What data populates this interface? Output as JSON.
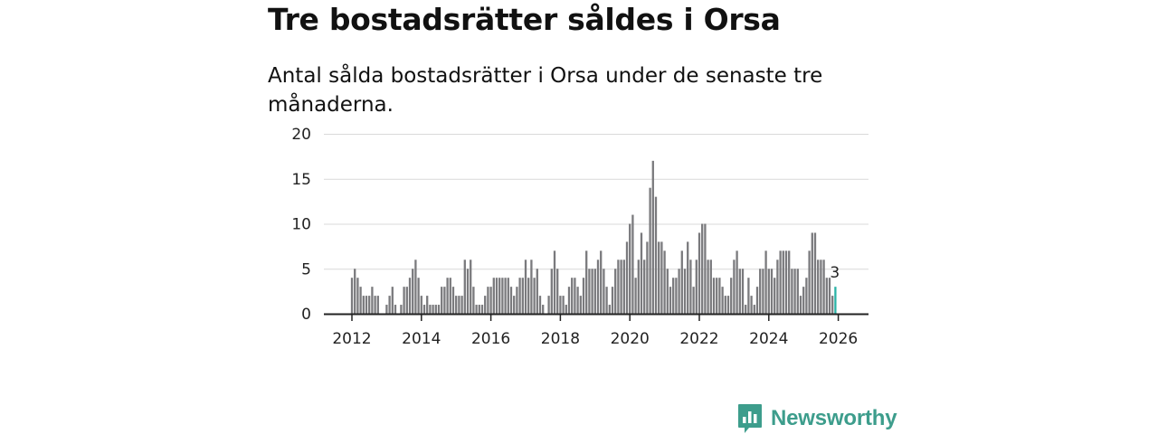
{
  "title": "Tre bostadsrätter såldes i Orsa",
  "subtitle": "Antal sålda bostadsrätter i Orsa under de senaste tre månaderna.",
  "brand": {
    "name": "Newsworthy",
    "icon": "newsworthy-logo-icon",
    "color": "#3d9d8c"
  },
  "colors": {
    "bar": "#7a7a7d",
    "highlight": "#2ab3a6",
    "grid": "#d9d9d9",
    "axis": "#222222"
  },
  "chart_data": {
    "type": "bar",
    "title": "Tre bostadsrätter såldes i Orsa",
    "xlabel": "",
    "ylabel": "",
    "ylim": [
      0,
      20
    ],
    "yticks": [
      0,
      5,
      10,
      15,
      20
    ],
    "xticks": [
      "2012",
      "2014",
      "2016",
      "2018",
      "2020",
      "2022",
      "2024",
      "2026"
    ],
    "start": "2012-01",
    "frequency": "monthly",
    "grid": true,
    "highlight_label": "3",
    "values": [
      4,
      5,
      4,
      3,
      2,
      2,
      2,
      3,
      2,
      2,
      0,
      0,
      1,
      2,
      3,
      1,
      0,
      1,
      3,
      3,
      4,
      5,
      6,
      4,
      2,
      1,
      2,
      1,
      1,
      1,
      1,
      3,
      3,
      4,
      4,
      3,
      2,
      2,
      2,
      6,
      5,
      6,
      3,
      1,
      1,
      1,
      2,
      3,
      3,
      4,
      4,
      4,
      4,
      4,
      4,
      3,
      2,
      3,
      4,
      4,
      6,
      4,
      6,
      4,
      5,
      2,
      1,
      0,
      2,
      5,
      7,
      5,
      2,
      2,
      1,
      3,
      4,
      4,
      3,
      2,
      4,
      7,
      5,
      5,
      5,
      6,
      7,
      5,
      3,
      1,
      3,
      5,
      6,
      6,
      6,
      8,
      10,
      11,
      4,
      6,
      9,
      6,
      8,
      14,
      17,
      13,
      8,
      8,
      7,
      5,
      3,
      4,
      4,
      5,
      7,
      5,
      8,
      6,
      3,
      6,
      9,
      10,
      10,
      6,
      6,
      4,
      4,
      4,
      3,
      2,
      2,
      4,
      6,
      7,
      5,
      5,
      1,
      4,
      2,
      1,
      3,
      5,
      5,
      7,
      5,
      5,
      4,
      6,
      7,
      7,
      7,
      7,
      5,
      5,
      5,
      2,
      3,
      4,
      7,
      9,
      9,
      6,
      6,
      6,
      4,
      4,
      2,
      3
    ]
  }
}
